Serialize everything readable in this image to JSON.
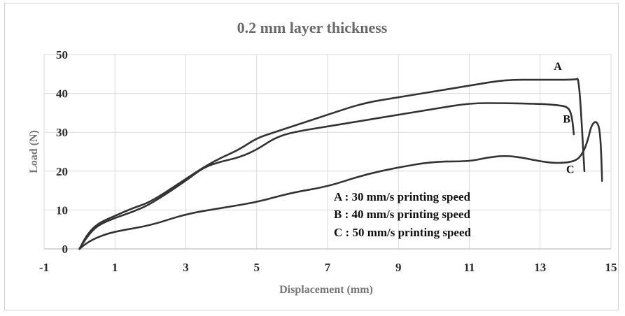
{
  "chart_data": {
    "type": "line",
    "title": "0.2 mm layer thickness",
    "xlabel": "Displacement (mm)",
    "ylabel": "Load (N)",
    "xlim": [
      -1,
      15
    ],
    "ylim": [
      0,
      50
    ],
    "xticks": [
      -1,
      1,
      3,
      5,
      7,
      9,
      11,
      13,
      15
    ],
    "yticks": [
      0,
      10,
      20,
      30,
      40,
      50
    ],
    "grid": {
      "x": true,
      "y": true
    },
    "legend_position": "bottom-center",
    "legend": [
      "A : 30 mm/s printing speed",
      "B : 40 mm/s printing speed",
      "C : 50 mm/s printing speed"
    ],
    "line_color": "#333333",
    "grid_color": "#d9d9d9",
    "series": [
      {
        "name": "A",
        "x": [
          0,
          0.2,
          0.5,
          1.0,
          1.5,
          2.0,
          3.0,
          3.5,
          4.0,
          4.5,
          5.0,
          5.5,
          6.0,
          7.0,
          8.0,
          9.0,
          10.0,
          11.0,
          12.0,
          13.0,
          14.0,
          14.1,
          14.25
        ],
        "y": [
          0,
          3.5,
          6.5,
          8.5,
          10.5,
          12.0,
          18.0,
          21.0,
          23.5,
          25.5,
          28.5,
          30.0,
          31.5,
          34.5,
          37.5,
          39.0,
          40.5,
          42.0,
          43.5,
          43.5,
          43.5,
          44.0,
          20.0
        ]
      },
      {
        "name": "B",
        "x": [
          0,
          0.2,
          0.5,
          1.0,
          1.5,
          2.0,
          3.0,
          3.5,
          4.0,
          4.5,
          5.0,
          5.5,
          6.0,
          7.0,
          8.0,
          9.0,
          10.0,
          11.0,
          12.0,
          13.0,
          13.5,
          13.8,
          13.9,
          13.95
        ],
        "y": [
          0,
          3.0,
          6.0,
          8.0,
          9.5,
          11.5,
          17.5,
          21.0,
          22.5,
          23.5,
          25.5,
          28.5,
          30.0,
          31.5,
          33.0,
          34.5,
          36.0,
          37.5,
          37.5,
          37.3,
          37.0,
          36.5,
          34.0,
          29.5
        ]
      },
      {
        "name": "C",
        "x": [
          0,
          0.2,
          0.5,
          1.0,
          2.0,
          3.0,
          4.0,
          5.0,
          6.0,
          7.0,
          8.0,
          9.0,
          10.0,
          11.0,
          11.5,
          12.0,
          12.5,
          13.0,
          13.5,
          14.0,
          14.2,
          14.35,
          14.45,
          14.6,
          14.7,
          14.75
        ],
        "y": [
          0,
          1.5,
          3.0,
          4.5,
          6.0,
          9.0,
          10.5,
          12.0,
          14.5,
          16.0,
          19.0,
          21.0,
          22.5,
          22.5,
          23.5,
          24.0,
          23.5,
          22.5,
          22.0,
          22.5,
          24.5,
          28.0,
          32.0,
          33.0,
          30.0,
          17.5
        ]
      }
    ],
    "curve_labels": [
      {
        "text": "A",
        "x": 13.5,
        "y": 46
      },
      {
        "text": "B",
        "x": 13.75,
        "y": 32.5
      },
      {
        "text": "C",
        "x": 13.85,
        "y": 19.5
      }
    ]
  }
}
